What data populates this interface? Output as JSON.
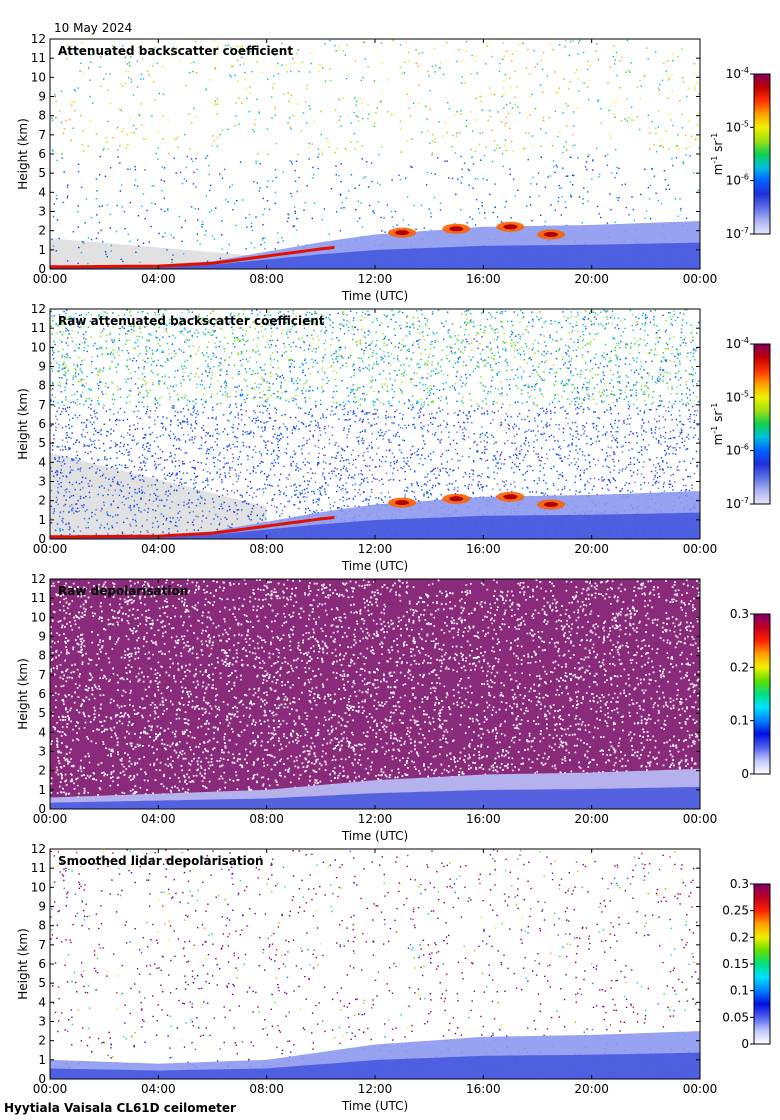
{
  "header": {
    "date": "10 May 2024"
  },
  "footer": {
    "site": "Hyytiala Vaisala CL61D ceilometer"
  },
  "chart_data": [
    {
      "type": "heatmap",
      "title": "Attenuated backscatter coefficient",
      "xlabel": "Time (UTC)",
      "ylabel": "Height (km)",
      "xticks": [
        "00:00",
        "04:00",
        "08:00",
        "12:00",
        "16:00",
        "20:00",
        "00:00"
      ],
      "yticks": [
        "0",
        "1",
        "2",
        "3",
        "4",
        "5",
        "6",
        "7",
        "8",
        "9",
        "10",
        "11",
        "12"
      ],
      "xlim_hours": [
        0,
        24
      ],
      "ylim_km": [
        0,
        12
      ],
      "colorbar": {
        "scale": "log",
        "ticks": [
          "10-7",
          "10-6",
          "10-5",
          "10-4"
        ],
        "unit": "m-1 sr-1"
      },
      "palette": "white-grey-blue-cyan-green-yellow-orange-red-purple",
      "background": "#ffffff",
      "features": {
        "boundary_layer_top_km": [
          [
            0,
            0.15
          ],
          [
            4,
            0.2
          ],
          [
            6,
            0.4
          ],
          [
            8,
            0.9
          ],
          [
            10,
            1.4
          ],
          [
            12,
            1.8
          ],
          [
            16,
            2.2
          ],
          [
            20,
            2.3
          ],
          [
            24,
            2.5
          ]
        ],
        "cloud_layer_km": [
          [
            13,
            1.9
          ],
          [
            15,
            2.1
          ],
          [
            17,
            2.2
          ],
          [
            18.5,
            1.8
          ]
        ],
        "noise_density": "sparse",
        "grey_low_signal_region_hours": [
          0,
          8
        ]
      }
    },
    {
      "type": "heatmap",
      "title": "Raw attenuated backscatter coefficient",
      "xlabel": "Time (UTC)",
      "ylabel": "Height (km)",
      "xticks": [
        "00:00",
        "04:00",
        "08:00",
        "12:00",
        "16:00",
        "20:00",
        "00:00"
      ],
      "yticks": [
        "0",
        "1",
        "2",
        "3",
        "4",
        "5",
        "6",
        "7",
        "8",
        "9",
        "10",
        "11",
        "12"
      ],
      "xlim_hours": [
        0,
        24
      ],
      "ylim_km": [
        0,
        12
      ],
      "colorbar": {
        "scale": "log",
        "ticks": [
          "10-7",
          "10-6",
          "10-5",
          "10-4"
        ],
        "unit": "m-1 sr-1"
      },
      "palette": "white-grey-blue-cyan-green-yellow-orange-red-purple",
      "background": "#ffffff",
      "features": {
        "boundary_layer_top_km": [
          [
            0,
            0.15
          ],
          [
            4,
            0.2
          ],
          [
            6,
            0.4
          ],
          [
            8,
            0.9
          ],
          [
            10,
            1.4
          ],
          [
            12,
            1.8
          ],
          [
            16,
            2.2
          ],
          [
            20,
            2.3
          ],
          [
            24,
            2.5
          ]
        ],
        "cloud_layer_km": [
          [
            13,
            1.9
          ],
          [
            15,
            2.1
          ],
          [
            17,
            2.2
          ],
          [
            18.5,
            1.8
          ]
        ],
        "noise_density": "dense",
        "grey_low_signal_region_hours": [
          0,
          8
        ]
      }
    },
    {
      "type": "heatmap",
      "title": "Raw depolarisation",
      "xlabel": "Time (UTC)",
      "ylabel": "Height (km)",
      "xticks": [
        "00:00",
        "04:00",
        "08:00",
        "12:00",
        "16:00",
        "20:00",
        "00:00"
      ],
      "yticks": [
        "0",
        "1",
        "2",
        "3",
        "4",
        "5",
        "6",
        "7",
        "8",
        "9",
        "10",
        "11",
        "12"
      ],
      "xlim_hours": [
        0,
        24
      ],
      "ylim_km": [
        0,
        12
      ],
      "colorbar": {
        "scale": "linear",
        "ticks": [
          "0",
          "0.1",
          "0.2",
          "0.3"
        ],
        "unit": ""
      },
      "palette": "white-blue-cyan-green-yellow-orange-red-purple",
      "background": "#ffffff",
      "features": {
        "boundary_layer_top_km": [
          [
            0,
            0.6
          ],
          [
            4,
            0.8
          ],
          [
            8,
            1.0
          ],
          [
            12,
            1.5
          ],
          [
            16,
            1.8
          ],
          [
            20,
            1.9
          ],
          [
            24,
            2.1
          ]
        ],
        "noise_density": "saturated"
      }
    },
    {
      "type": "heatmap",
      "title": "Smoothed lidar depolarisation",
      "xlabel": "Time (UTC)",
      "ylabel": "Height (km)",
      "xticks": [
        "00:00",
        "04:00",
        "08:00",
        "12:00",
        "16:00",
        "20:00",
        "00:00"
      ],
      "yticks": [
        "0",
        "1",
        "2",
        "3",
        "4",
        "5",
        "6",
        "7",
        "8",
        "9",
        "10",
        "11",
        "12"
      ],
      "xlim_hours": [
        0,
        24
      ],
      "ylim_km": [
        0,
        12
      ],
      "colorbar": {
        "scale": "linear",
        "ticks": [
          "0",
          "0.05",
          "0.1",
          "0.15",
          "0.2",
          "0.25",
          "0.3"
        ],
        "unit": ""
      },
      "palette": "white-blue-cyan-green-yellow-orange-red-purple",
      "background": "#ffffff",
      "features": {
        "boundary_layer_top_km": [
          [
            0,
            1.0
          ],
          [
            4,
            0.8
          ],
          [
            8,
            1.0
          ],
          [
            12,
            1.8
          ],
          [
            16,
            2.2
          ],
          [
            20,
            2.3
          ],
          [
            24,
            2.5
          ]
        ],
        "noise_density": "sparse"
      }
    }
  ]
}
